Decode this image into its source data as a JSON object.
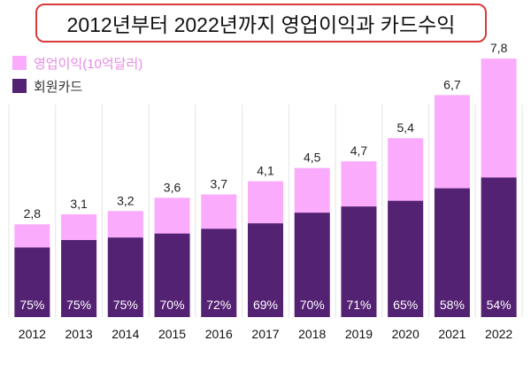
{
  "title": "2012년부터 2022년까지 영업이익과 카드수익",
  "colors": {
    "profit": "#fbabfb",
    "profit_legend_text": "#e98ae6",
    "card": "#542272",
    "grid": "#e4e4e4",
    "title_border": "#d93a3a"
  },
  "chart_data": {
    "type": "bar",
    "categories": [
      "2012",
      "2013",
      "2014",
      "2015",
      "2016",
      "2017",
      "2018",
      "2019",
      "2020",
      "2021",
      "2022"
    ],
    "series": [
      {
        "name": "영업이익(10억달러)",
        "values": [
          2.8,
          3.1,
          3.2,
          3.6,
          3.7,
          4.1,
          4.5,
          4.7,
          5.4,
          6.7,
          7.8
        ]
      },
      {
        "name": "회원카드",
        "share": [
          "75%",
          "75%",
          "75%",
          "70%",
          "72%",
          "69%",
          "70%",
          "71%",
          "65%",
          "58%",
          "54%"
        ],
        "share_values": [
          0.75,
          0.75,
          0.75,
          0.7,
          0.72,
          0.69,
          0.7,
          0.71,
          0.65,
          0.58,
          0.54
        ]
      }
    ],
    "total_labels": [
      "2,8",
      "3,1",
      "3,2",
      "3,6",
      "3,7",
      "4,1",
      "4,5",
      "4,7",
      "5,4",
      "6,7",
      "7,8"
    ],
    "ylim": [
      0,
      8.5
    ],
    "grid": "vertical",
    "legend_position": "top-left"
  }
}
